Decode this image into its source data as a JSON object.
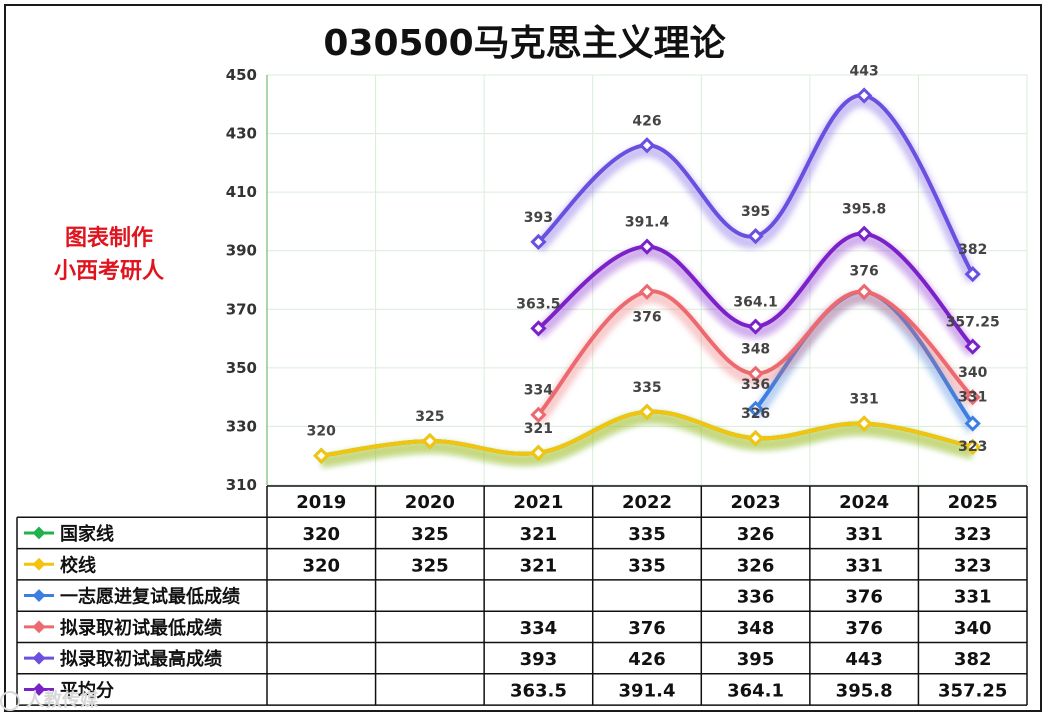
{
  "title": "030500马克思主义理论",
  "watermark": [
    "图表制作",
    "小西考研人"
  ],
  "corner_mark": "人教传媒",
  "chart_data": {
    "type": "line",
    "title": "030500马克思主义理论",
    "categories": [
      "2019",
      "2020",
      "2021",
      "2022",
      "2023",
      "2024",
      "2025"
    ],
    "ylim": [
      310,
      450
    ],
    "yticks": [
      310,
      330,
      350,
      370,
      390,
      410,
      430,
      450
    ],
    "grid": true,
    "legend": "table-below",
    "series": [
      {
        "name": "国家线",
        "color": "#22b14c",
        "values": [
          320,
          325,
          321,
          335,
          326,
          331,
          323
        ],
        "labels": [
          "",
          "",
          "",
          "",
          "",
          "",
          ""
        ]
      },
      {
        "name": "校线",
        "color": "#f2c40f",
        "values": [
          320,
          325,
          321,
          335,
          326,
          331,
          323
        ],
        "labels": [
          "320",
          "325",
          "321",
          "335",
          "326",
          "331",
          "323"
        ]
      },
      {
        "name": "一志愿进复试最低成绩",
        "color": "#3d7fe0",
        "values": [
          null,
          null,
          null,
          null,
          336,
          376,
          331
        ],
        "labels": [
          "",
          "",
          "",
          "",
          "336",
          "",
          "331"
        ]
      },
      {
        "name": "拟录取初试最低成绩",
        "color": "#ec6a6f",
        "values": [
          null,
          null,
          334,
          376,
          348,
          376,
          340
        ],
        "labels": [
          "",
          "",
          "334",
          "376",
          "348",
          "376",
          "340"
        ]
      },
      {
        "name": "拟录取初试最高成绩",
        "color": "#6a4fe0",
        "values": [
          null,
          null,
          393,
          426,
          395,
          443,
          382
        ],
        "labels": [
          "",
          "",
          "393",
          "426",
          "395",
          "443",
          "382"
        ]
      },
      {
        "name": "平均分",
        "color": "#7a22c8",
        "values": [
          null,
          null,
          363.5,
          391.4,
          364.1,
          395.8,
          357.25
        ],
        "labels": [
          "",
          "",
          "363.5",
          "391.4",
          "364.1",
          "395.8",
          "357.25"
        ]
      }
    ],
    "table": [
      {
        "name": "国家线",
        "cells": [
          "320",
          "325",
          "321",
          "335",
          "326",
          "331",
          "323"
        ]
      },
      {
        "name": "校线",
        "cells": [
          "320",
          "325",
          "321",
          "335",
          "326",
          "331",
          "323"
        ]
      },
      {
        "name": "一志愿进复试最低成绩",
        "cells": [
          "",
          "",
          "",
          "",
          "336",
          "376",
          "331"
        ]
      },
      {
        "name": "拟录取初试最低成绩",
        "cells": [
          "",
          "",
          "334",
          "376",
          "348",
          "376",
          "340"
        ]
      },
      {
        "name": "拟录取初试最高成绩",
        "cells": [
          "",
          "",
          "393",
          "426",
          "395",
          "443",
          "382"
        ]
      },
      {
        "name": "平均分",
        "cells": [
          "",
          "",
          "363.5",
          "391.4",
          "364.1",
          "395.8",
          "357.25"
        ]
      }
    ]
  }
}
